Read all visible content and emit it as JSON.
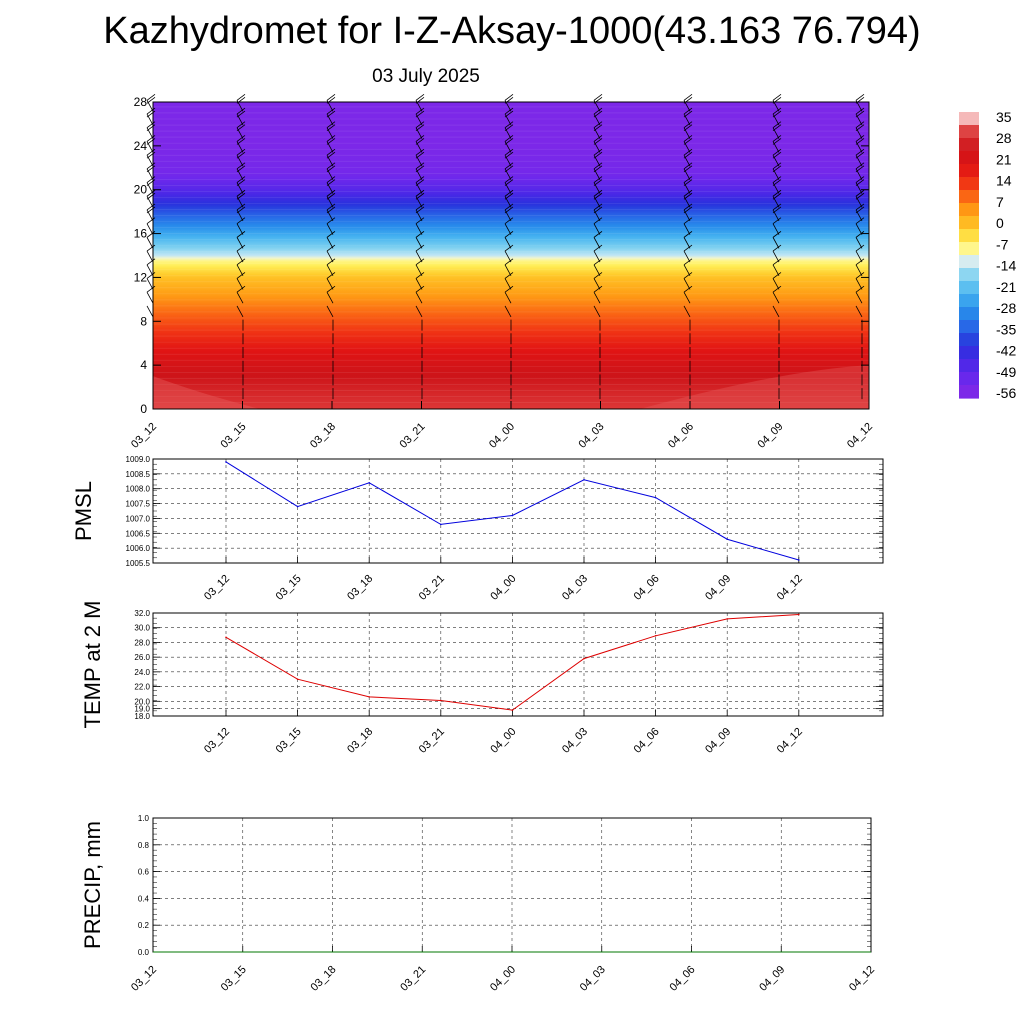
{
  "title": "Kazhydromet for I-Z-Aksay-1000(43.163 76.794)",
  "subtitle": "03 July 2025",
  "chart_data": [
    {
      "type": "heatmap",
      "name": "cross-section",
      "y_ticks": [
        "0",
        "4",
        "8",
        "12",
        "16",
        "20",
        "24",
        "28"
      ],
      "ylim": [
        0,
        28
      ],
      "x_ticks": [
        "03_12",
        "03_15",
        "03_18",
        "03_21",
        "04_00",
        "04_03",
        "04_06",
        "04_09",
        "04_12"
      ],
      "description": "temperature vs height with wind barbs",
      "levels_profile": [
        {
          "h": 0,
          "t": 30
        },
        {
          "h": 2,
          "t": 26
        },
        {
          "h": 4,
          "t": 22
        },
        {
          "h": 6,
          "t": 16
        },
        {
          "h": 8,
          "t": 10
        },
        {
          "h": 10,
          "t": 4
        },
        {
          "h": 12,
          "t": -2
        },
        {
          "h": 13.5,
          "t": -10
        },
        {
          "h": 14,
          "t": -16
        },
        {
          "h": 16,
          "t": -28
        },
        {
          "h": 18,
          "t": -40
        },
        {
          "h": 20,
          "t": -52
        },
        {
          "h": 21.5,
          "t": -58
        },
        {
          "h": 24,
          "t": -60
        },
        {
          "h": 28,
          "t": -60
        }
      ],
      "colorbar_labels": [
        "35",
        "28",
        "21",
        "14",
        "7",
        "0",
        "-7",
        "-14",
        "-21",
        "-28",
        "-35",
        "-42",
        "-49",
        "-56"
      ]
    },
    {
      "type": "line",
      "name": "pmsl",
      "ylabel": "PMSL",
      "x": [
        "03_12",
        "03_15",
        "03_18",
        "03_21",
        "04_00",
        "04_03",
        "04_06",
        "04_09",
        "04_12"
      ],
      "values": [
        1008.9,
        1007.4,
        1008.2,
        1006.8,
        1007.1,
        1008.3,
        1007.7,
        1006.3,
        1005.6
      ],
      "ylim": [
        1005.5,
        1009.0
      ],
      "y_ticks": [
        "1005.5",
        "1006.0",
        "1006.5",
        "1007.0",
        "1007.5",
        "1008.0",
        "1008.5",
        "1009.0"
      ],
      "color": "#0000dd",
      "grid": true
    },
    {
      "type": "line",
      "name": "temp2m",
      "ylabel": "TEMP at 2 M",
      "x": [
        "03_12",
        "03_15",
        "03_18",
        "03_21",
        "04_00",
        "04_03",
        "04_06",
        "04_09",
        "04_12"
      ],
      "values": [
        28.7,
        23.0,
        20.6,
        20.1,
        18.8,
        25.8,
        28.9,
        31.2,
        31.8
      ],
      "ylim": [
        18.0,
        32.0
      ],
      "y_ticks": [
        "18.0",
        "19.0",
        "20.0",
        "22.0",
        "24.0",
        "26.0",
        "28.0",
        "30.0",
        "32.0"
      ],
      "color": "#dd0000",
      "grid": true
    },
    {
      "type": "line",
      "name": "precip",
      "ylabel": "PRECIP, mm",
      "x": [
        "03_12",
        "03_15",
        "03_18",
        "03_21",
        "04_00",
        "04_03",
        "04_06",
        "04_09",
        "04_12"
      ],
      "values": [
        0,
        0,
        0,
        0,
        0,
        0,
        0,
        0,
        0
      ],
      "ylim": [
        0.0,
        1.0
      ],
      "y_ticks": [
        "0.0",
        "0.2",
        "0.4",
        "0.6",
        "0.8",
        "1.0"
      ],
      "color": "#007700",
      "grid": true
    }
  ]
}
